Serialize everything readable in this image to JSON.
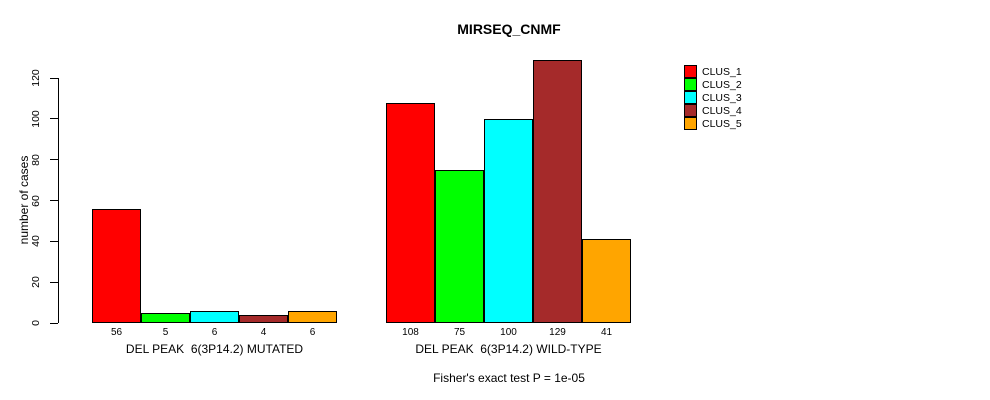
{
  "title": "MIRSEQ_CNMF",
  "chart_data": {
    "type": "bar",
    "title": "MIRSEQ_CNMF",
    "xlabel": "",
    "ylabel": "number of cases",
    "ylim": [
      0,
      129
    ],
    "yticks": [
      0,
      20,
      40,
      60,
      80,
      100,
      120
    ],
    "grid": false,
    "legend_position": "right",
    "series_names": [
      "CLUS_1",
      "CLUS_2",
      "CLUS_3",
      "CLUS_4",
      "CLUS_5"
    ],
    "series_colors": [
      "#ff0000",
      "#00ff00",
      "#00ffff",
      "#a52a2a",
      "#ffa500"
    ],
    "groups": [
      {
        "label": "DEL PEAK  6(3P14.2) MUTATED",
        "values": [
          56,
          5,
          6,
          4,
          6
        ],
        "value_labels": [
          "56",
          "5",
          "6",
          "4",
          "6"
        ]
      },
      {
        "label": "DEL PEAK  6(3P14.2) WILD-TYPE",
        "values": [
          108,
          75,
          100,
          129,
          41
        ],
        "value_labels": [
          "108",
          "75",
          "100",
          "129",
          "41"
        ]
      }
    ],
    "annotation": "Fisher's exact test P = 1e-05",
    "bar_border_color": "#000000",
    "background_color": "#ffffff"
  }
}
